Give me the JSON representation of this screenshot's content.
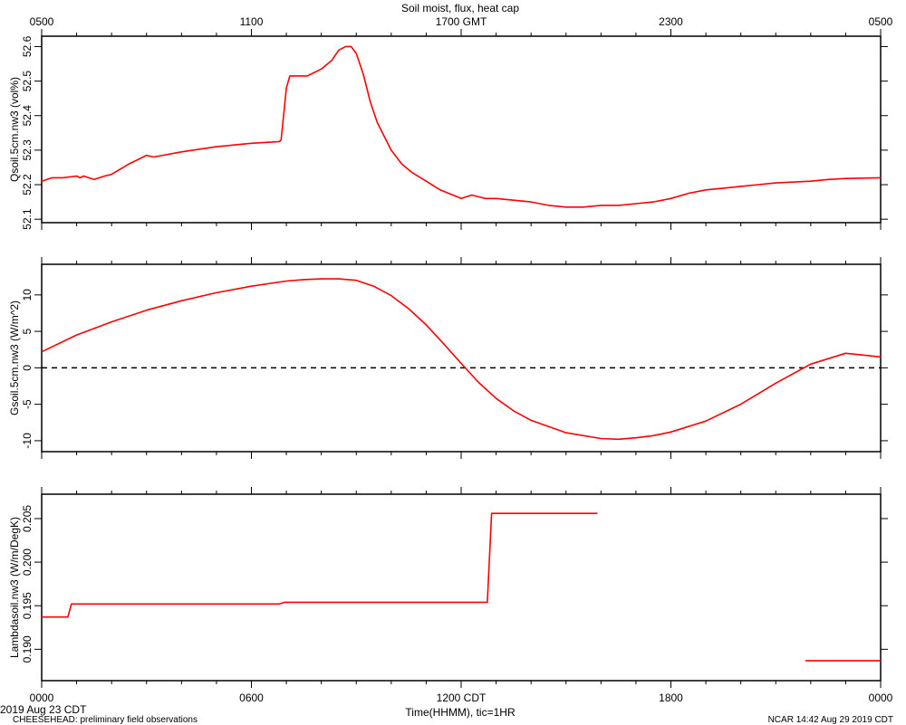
{
  "figure_title": "Soil moist, flux, heat cap",
  "top_axis": {
    "tick_labels": [
      "0500",
      "1100",
      "1700 GMT",
      "2300",
      "0500"
    ]
  },
  "bottom_axis": {
    "tick_labels": [
      "0000",
      "0600",
      "1200 CDT",
      "1800",
      "0000"
    ],
    "xlabel": "Time(HHMM), tic=1HR"
  },
  "footer": {
    "date_label": "2019 Aug 23 CDT",
    "project_note": "CHEESEHEAD: preliminary field observations",
    "credit": "NCAR 14:42 Aug 29 2019 CDT"
  },
  "colors": {
    "series": "#ff0000",
    "axes": "#000000",
    "zero_line": "#000000"
  },
  "chart_data": [
    {
      "type": "line",
      "ylabel": "Qsoil.5cm.nw3 (vol%)",
      "xlim": [
        0,
        24
      ],
      "ylim": [
        52.09,
        52.63
      ],
      "yticks": [
        52.1,
        52.2,
        52.3,
        52.4,
        52.5,
        52.6
      ],
      "tick_labels": [
        "52.1",
        "52.2",
        "52.3",
        "52.4",
        "52.5",
        "52.6"
      ],
      "grid": false,
      "series": [
        {
          "x": [
            0,
            0.3,
            0.6,
            1.0,
            1.1,
            1.2,
            1.5,
            1.8,
            2.0,
            2.5,
            3.0,
            3.2,
            4.0,
            5.0,
            6.0,
            6.8,
            6.85,
            7.0,
            7.1,
            7.6,
            7.8,
            8.0,
            8.3,
            8.5,
            8.7,
            8.85,
            9.0,
            9.2,
            9.4,
            9.6,
            9.8,
            10.0,
            10.3,
            10.6,
            11.0,
            11.4,
            12.0,
            12.3,
            12.5,
            12.7,
            13.0,
            14.0,
            14.5,
            15.0,
            15.5,
            16.0,
            16.5,
            17.0,
            17.5,
            18.0,
            18.5,
            19.0,
            19.5,
            20.0,
            20.5,
            21.0,
            22.0,
            22.5,
            23.0,
            24.0
          ],
          "y": [
            52.21,
            52.22,
            52.22,
            52.225,
            52.22,
            52.225,
            52.215,
            52.225,
            52.23,
            52.26,
            52.285,
            52.28,
            52.295,
            52.31,
            52.32,
            52.325,
            52.33,
            52.48,
            52.515,
            52.515,
            52.525,
            52.535,
            52.56,
            52.59,
            52.6,
            52.6,
            52.58,
            52.52,
            52.44,
            52.38,
            52.34,
            52.3,
            52.26,
            52.235,
            52.21,
            52.185,
            52.16,
            52.17,
            52.165,
            52.16,
            52.16,
            52.15,
            52.14,
            52.135,
            52.135,
            52.14,
            52.14,
            52.145,
            52.15,
            52.16,
            52.175,
            52.185,
            52.19,
            52.195,
            52.2,
            52.205,
            52.21,
            52.215,
            52.218,
            52.22
          ]
        }
      ]
    },
    {
      "type": "line",
      "ylabel": "Gsoil.5cm.nw3 (W/m^2)",
      "xlim": [
        0,
        24
      ],
      "ylim": [
        -11.5,
        14.2
      ],
      "yticks": [
        -10,
        -5,
        0,
        5,
        10
      ],
      "tick_labels": [
        "-10",
        "-5",
        "0",
        "5",
        "10"
      ],
      "zero_line": true,
      "grid": false,
      "series": [
        {
          "x": [
            0,
            1,
            2,
            3,
            4,
            5,
            6,
            7,
            7.5,
            8,
            8.5,
            9,
            9.5,
            10,
            10.5,
            11,
            11.5,
            12,
            12.5,
            13,
            13.5,
            14,
            15,
            16,
            16.5,
            17,
            17.5,
            18,
            19,
            20,
            21,
            22,
            23,
            24
          ],
          "y": [
            2.2,
            4.5,
            6.3,
            7.9,
            9.2,
            10.3,
            11.2,
            11.9,
            12.1,
            12.2,
            12.2,
            12.0,
            11.2,
            9.9,
            8.1,
            5.9,
            3.3,
            0.6,
            -2.0,
            -4.2,
            -5.9,
            -7.2,
            -8.9,
            -9.7,
            -9.8,
            -9.6,
            -9.3,
            -8.8,
            -7.3,
            -5.0,
            -2.1,
            0.5,
            2.0,
            1.5
          ]
        }
      ]
    },
    {
      "type": "line",
      "ylabel": "Lambdasoil.nw3 (W/m/DegK)",
      "xlim": [
        0,
        24
      ],
      "ylim": [
        0.1864,
        0.2078
      ],
      "yticks": [
        0.19,
        0.195,
        0.2,
        0.205
      ],
      "tick_labels": [
        "0.190",
        "0.195",
        "0.200",
        "0.205"
      ],
      "grid": false,
      "series": [
        {
          "segments": [
            {
              "x": [
                0,
                0.75,
                0.85,
                6.8,
                6.95,
                12.75,
                12.87,
                15.9
              ],
              "y": [
                0.1937,
                0.1937,
                0.1952,
                0.1952,
                0.1954,
                0.1954,
                0.2056,
                0.2056
              ]
            },
            {
              "x": [
                21.85,
                24
              ],
              "y": [
                0.1887,
                0.1887
              ]
            }
          ]
        }
      ]
    }
  ]
}
